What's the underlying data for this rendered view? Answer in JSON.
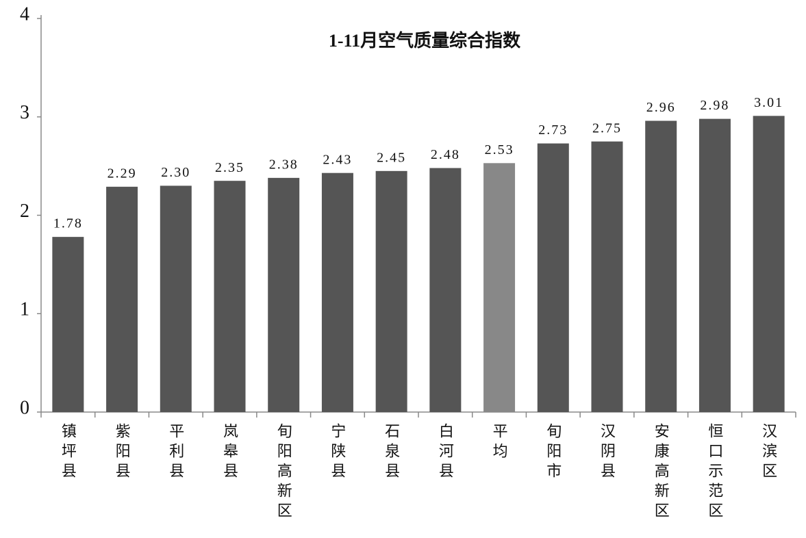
{
  "chart_data": {
    "type": "bar",
    "title": "1-11月空气质量综合指数",
    "categories": [
      "镇坪县",
      "紫阳县",
      "平利县",
      "岚皋县",
      "旬阳高新区",
      "宁陕县",
      "石泉县",
      "白河县",
      "平均",
      "旬阳市",
      "汉阴县",
      "安康高新区",
      "恒口示范区",
      "汉滨区"
    ],
    "values": [
      1.78,
      2.29,
      2.3,
      2.35,
      2.38,
      2.43,
      2.45,
      2.48,
      2.53,
      2.73,
      2.75,
      2.96,
      2.98,
      3.01
    ],
    "value_labels": [
      "1.78",
      "2.29",
      "2.30",
      "2.35",
      "2.38",
      "2.43",
      "2.45",
      "2.48",
      "2.53",
      "2.73",
      "2.75",
      "2.96",
      "2.98",
      "3.01"
    ],
    "colors": [
      "#555555",
      "#555555",
      "#555555",
      "#555555",
      "#555555",
      "#555555",
      "#555555",
      "#555555",
      "#888888",
      "#555555",
      "#555555",
      "#555555",
      "#555555",
      "#555555"
    ],
    "ylim": [
      0,
      4
    ],
    "yticks": [
      0,
      1,
      2,
      3,
      4
    ],
    "grid": false
  }
}
